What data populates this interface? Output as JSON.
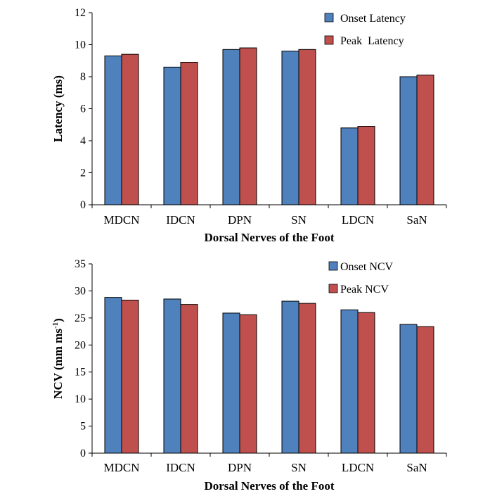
{
  "chart_data": [
    {
      "type": "bar",
      "categories": [
        "MDCN",
        "IDCN",
        "DPN",
        "SN",
        "LDCN",
        "SaN"
      ],
      "series": [
        {
          "name": "Onset Latency",
          "color": "#4F81BD",
          "values": [
            9.3,
            8.6,
            9.7,
            9.6,
            4.8,
            8.0
          ]
        },
        {
          "name": "Peak  Latency",
          "color": "#C0504D",
          "values": [
            9.4,
            8.9,
            9.8,
            9.7,
            4.9,
            8.1
          ]
        }
      ],
      "xlabel": "Dorsal Nerves of the Foot",
      "ylabel": "Latency (ms)",
      "ylim": [
        0,
        12
      ],
      "yticks": [
        0,
        2,
        4,
        6,
        8,
        10,
        12
      ],
      "legend_position": "top-right",
      "grid": false
    },
    {
      "type": "bar",
      "categories": [
        "MDCN",
        "IDCN",
        "DPN",
        "SN",
        "LDCN",
        "SaN"
      ],
      "series": [
        {
          "name": "Onset NCV",
          "color": "#4F81BD",
          "values": [
            28.8,
            28.5,
            25.9,
            28.1,
            26.5,
            23.8
          ]
        },
        {
          "name": "Peak NCV",
          "color": "#C0504D",
          "values": [
            28.3,
            27.5,
            25.6,
            27.7,
            26.0,
            23.4
          ]
        }
      ],
      "xlabel": "Dorsal Nerves of the Foot",
      "ylabel": "NCV (mm ms",
      "ylabel_superscript": "-1",
      "ylabel_suffix": ")",
      "ylim": [
        0,
        35
      ],
      "yticks": [
        0,
        5,
        10,
        15,
        20,
        25,
        30,
        35
      ],
      "legend_position": "top-right",
      "grid": false
    }
  ]
}
